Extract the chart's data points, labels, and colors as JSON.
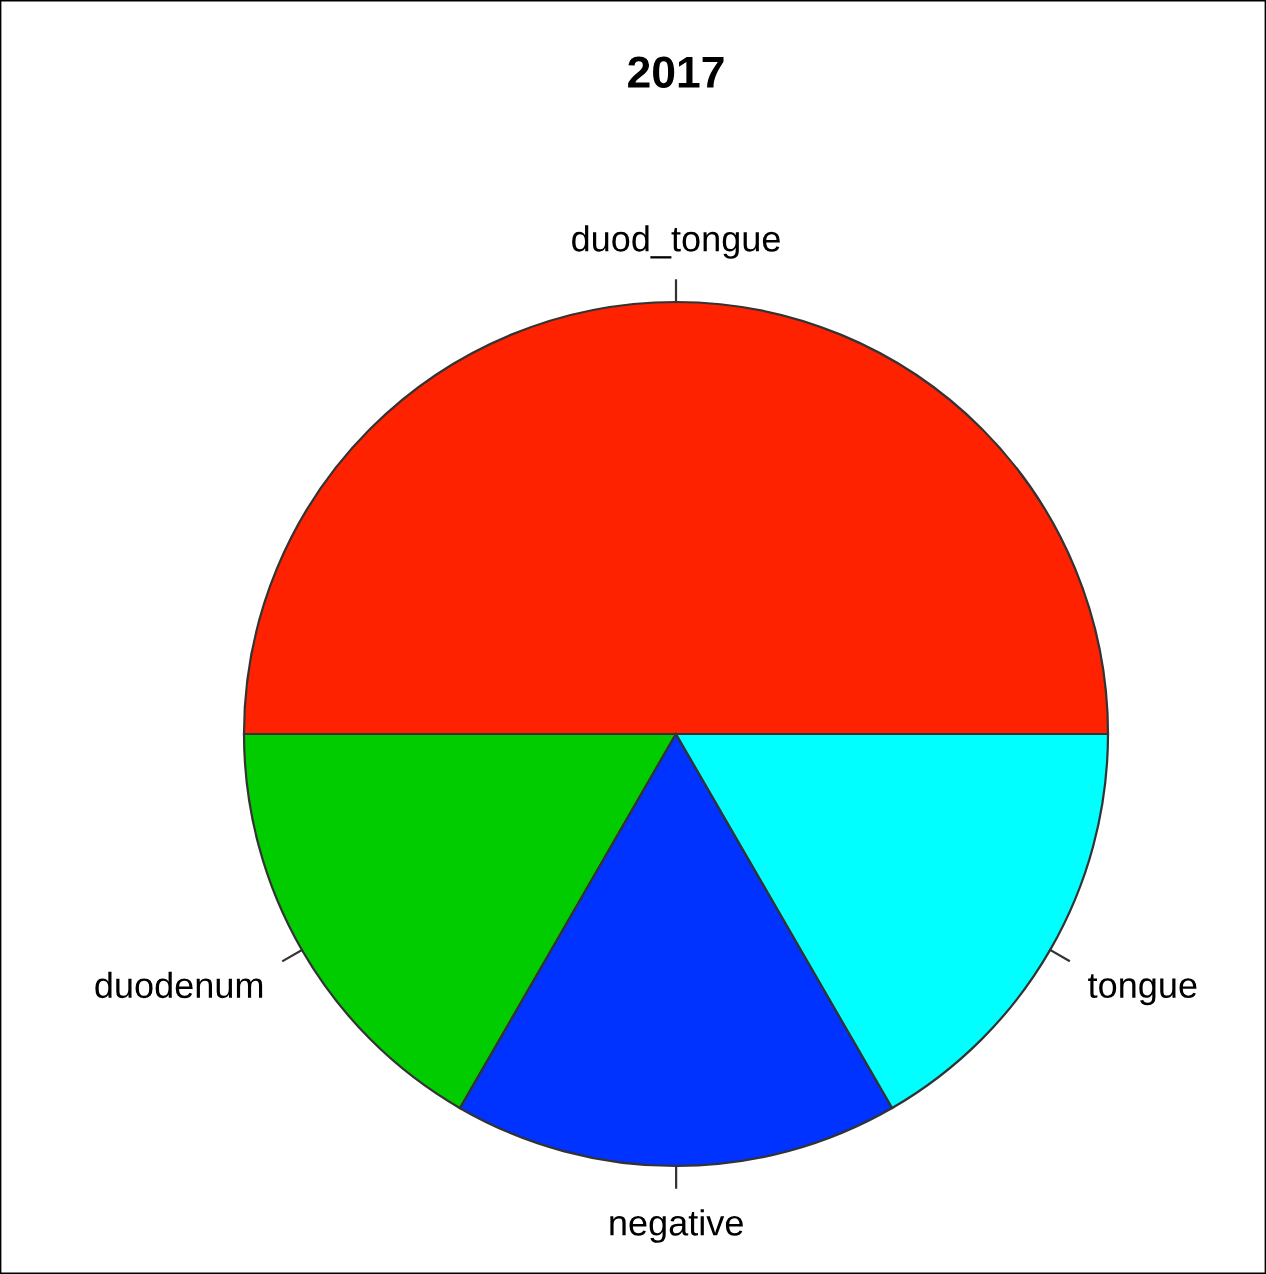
{
  "chart_data": {
    "type": "pie",
    "title": "2017",
    "categories": [
      "duod_tongue",
      "duodenum",
      "negative",
      "tongue"
    ],
    "values": [
      50,
      16.67,
      16.67,
      16.66
    ],
    "colors": [
      "#ff2200",
      "#00cc00",
      "#0033ff",
      "#00ffff"
    ]
  }
}
